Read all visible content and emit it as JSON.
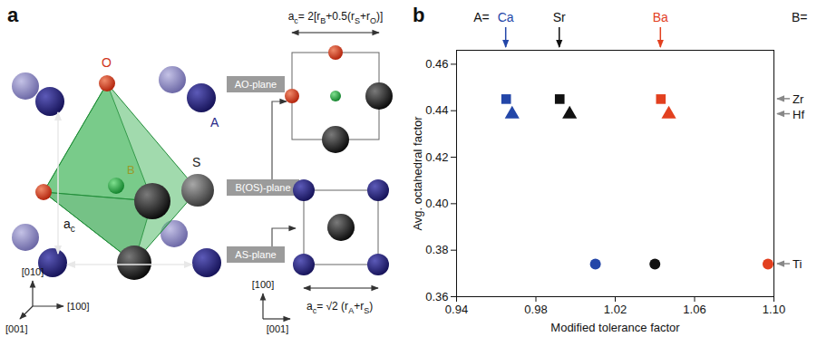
{
  "diagram": {
    "panel_letter": "a",
    "atoms": {
      "oxygen": "O",
      "b_site": "B",
      "s_site": "S",
      "a_site": "A"
    },
    "planes": [
      "AO-plane",
      "B(OS)-plane",
      "AS-plane"
    ],
    "lattice_parameter": [
      {
        "text": "a"
      },
      {
        "sub": "c"
      }
    ],
    "formula_b_os_plane": [
      {
        "text": "a"
      },
      {
        "sub": "c"
      },
      {
        "text": "= 2[r"
      },
      {
        "sub": "B"
      },
      {
        "text": "+0.5(r"
      },
      {
        "sub": "S"
      },
      {
        "text": "+r"
      },
      {
        "sub": "O"
      },
      {
        "text": ")]"
      }
    ],
    "formula_as_plane": [
      {
        "text": "a"
      },
      {
        "sub": "c"
      },
      {
        "text": "= √2 (r"
      },
      {
        "sub": "A"
      },
      {
        "text": "+r"
      },
      {
        "sub": "S"
      },
      {
        "text": ")"
      }
    ],
    "crystal_axes": [
      "[010]",
      "[100]",
      "[001]"
    ],
    "plane_axes": [
      "[100]",
      "[001]"
    ]
  },
  "chart_data": {
    "type": "scatter",
    "panel_letter": "b",
    "xlabel": "Modified tolerance factor",
    "ylabel": "Avg. octahedral factor",
    "xlim": [
      0.94,
      1.1
    ],
    "xticks": [
      0.94,
      0.98,
      1.02,
      1.06,
      {
        "value": 1.1,
        "label": "1.10"
      }
    ],
    "ylim": [
      0.36,
      0.466
    ],
    "yticks": [
      0.36,
      0.38,
      {
        "value": 0.4,
        "label": "0.40"
      },
      0.42,
      0.44,
      0.46
    ],
    "categories_title": "A=",
    "categories": [
      "Ca",
      "Sr",
      "Ba"
    ],
    "colors": [
      "#2346a8",
      "#111111",
      "#e2401f"
    ],
    "series_title": "B=",
    "series": [
      {
        "name": "Zr",
        "marker": "square",
        "x": [
          0.965,
          0.992,
          1.043
        ],
        "values": [
          0.445,
          0.445,
          0.445
        ]
      },
      {
        "name": "Hf",
        "marker": "triangle",
        "x": [
          0.968,
          0.997,
          1.047
        ],
        "values": [
          0.4385,
          0.4385,
          0.4385
        ]
      },
      {
        "name": "Ti",
        "marker": "circle",
        "x": [
          1.01,
          1.04,
          1.097
        ],
        "values": [
          0.374,
          0.374,
          0.374
        ]
      }
    ]
  }
}
